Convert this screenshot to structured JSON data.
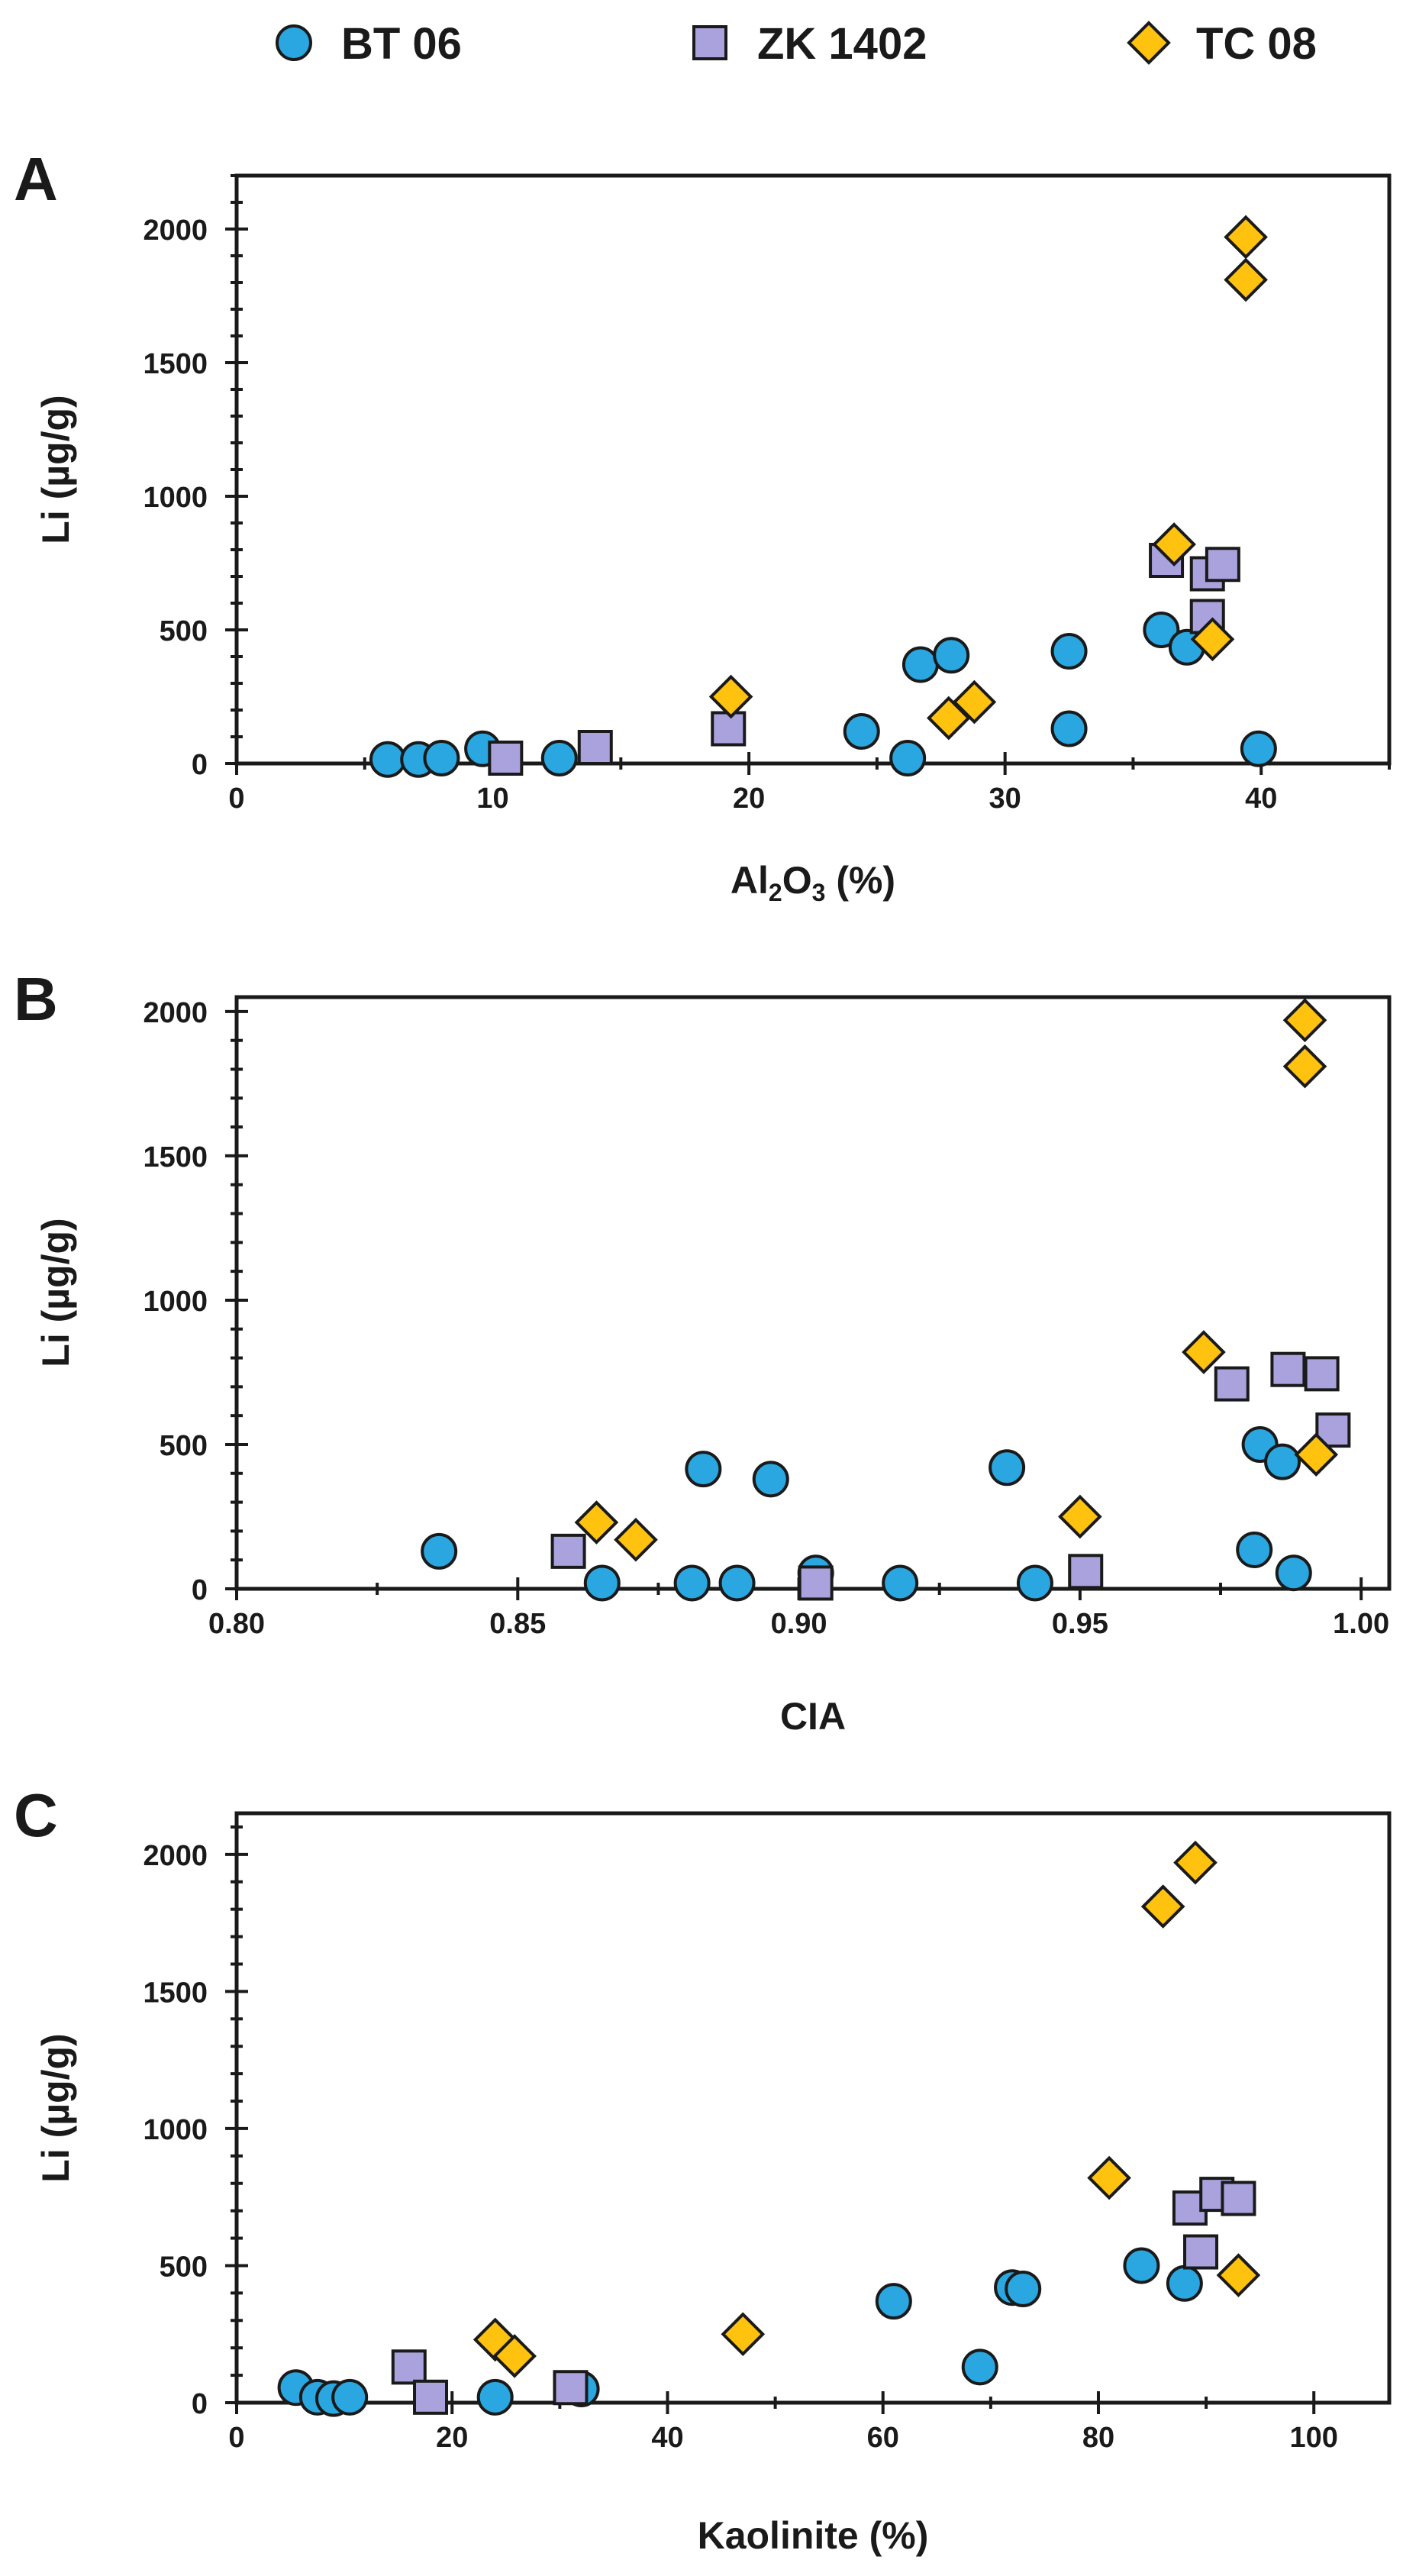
{
  "colors": {
    "BT 06": "#2aa7e0",
    "ZK 1402": "#a9a2dc",
    "TC 08": "#ffc20e",
    "stroke": "#1a1a1a"
  },
  "legend": [
    {
      "name": "BT 06",
      "marker": "circle-icon"
    },
    {
      "name": "ZK 1402",
      "marker": "square-icon"
    },
    {
      "name": "TC 08",
      "marker": "diamond-icon"
    }
  ],
  "chart_data": [
    {
      "type": "scatter",
      "panel": "A",
      "title": "",
      "xlabel": "Al2O3 (%)",
      "xlabel_main": "Al",
      "xlabel_sub1": "2",
      "xlabel_mid": "O",
      "xlabel_sub2": "3",
      "xlabel_tail": " (%)",
      "ylabel": "Li (µg/g)",
      "xlim": [
        0,
        45
      ],
      "ylim": [
        0,
        2200
      ],
      "xticks": [
        "0",
        "10",
        "20",
        "30",
        "40"
      ],
      "yticks": [
        "0",
        "500",
        "1000",
        "1500",
        "2000"
      ],
      "series": [
        {
          "name": "BT 06",
          "marker": "circle",
          "points": [
            [
              5.9,
              15
            ],
            [
              7.1,
              15
            ],
            [
              8.0,
              20
            ],
            [
              9.6,
              55
            ],
            [
              12.6,
              20
            ],
            [
              24.4,
              120
            ],
            [
              26.2,
              20
            ],
            [
              26.7,
              370
            ],
            [
              27.9,
              405
            ],
            [
              32.5,
              420
            ],
            [
              32.5,
              130
            ],
            [
              36.1,
              500
            ],
            [
              37.1,
              435
            ],
            [
              39.9,
              55
            ]
          ]
        },
        {
          "name": "ZK 1402",
          "marker": "square",
          "points": [
            [
              10.5,
              20
            ],
            [
              14.0,
              60
            ],
            [
              19.2,
              130
            ],
            [
              36.3,
              760
            ],
            [
              37.9,
              710
            ],
            [
              37.9,
              550
            ],
            [
              38.5,
              745
            ]
          ]
        },
        {
          "name": "TC 08",
          "marker": "diamond",
          "points": [
            [
              19.3,
              250
            ],
            [
              27.8,
              170
            ],
            [
              28.8,
              230
            ],
            [
              36.6,
              820
            ],
            [
              38.1,
              465
            ],
            [
              39.4,
              1970
            ],
            [
              39.4,
              1810
            ]
          ]
        }
      ]
    },
    {
      "type": "scatter",
      "panel": "B",
      "title": "",
      "xlabel": "CIA",
      "ylabel": "Li (µg/g)",
      "xlim": [
        0.8,
        1.005
      ],
      "ylim": [
        0,
        2050
      ],
      "xticks": [
        "0.80",
        "0.85",
        "0.90",
        "0.95",
        "1.00"
      ],
      "yticks": [
        "0",
        "500",
        "1000",
        "1500",
        "2000"
      ],
      "series": [
        {
          "name": "BT 06",
          "marker": "circle",
          "points": [
            [
              0.836,
              130
            ],
            [
              0.865,
              20
            ],
            [
              0.881,
              20
            ],
            [
              0.883,
              415
            ],
            [
              0.889,
              20
            ],
            [
              0.895,
              380
            ],
            [
              0.903,
              55
            ],
            [
              0.918,
              20
            ],
            [
              0.937,
              420
            ],
            [
              0.942,
              20
            ],
            [
              0.981,
              135
            ],
            [
              0.982,
              500
            ],
            [
              0.986,
              440
            ],
            [
              0.988,
              55
            ]
          ]
        },
        {
          "name": "ZK 1402",
          "marker": "square",
          "points": [
            [
              0.859,
              130
            ],
            [
              0.903,
              20
            ],
            [
              0.951,
              60
            ],
            [
              0.977,
              710
            ],
            [
              0.987,
              760
            ],
            [
              0.993,
              745
            ],
            [
              0.995,
              550
            ]
          ]
        },
        {
          "name": "TC 08",
          "marker": "diamond",
          "points": [
            [
              0.864,
              230
            ],
            [
              0.871,
              170
            ],
            [
              0.95,
              250
            ],
            [
              0.972,
              820
            ],
            [
              0.992,
              465
            ],
            [
              0.99,
              1970
            ],
            [
              0.99,
              1810
            ]
          ]
        }
      ]
    },
    {
      "type": "scatter",
      "panel": "C",
      "title": "",
      "xlabel": "Kaolinite (%)",
      "ylabel": "Li (µg/g)",
      "xlim": [
        0,
        107
      ],
      "ylim": [
        0,
        2150
      ],
      "xticks": [
        "0",
        "20",
        "40",
        "60",
        "80",
        "100"
      ],
      "yticks": [
        "0",
        "500",
        "1000",
        "1500",
        "2000"
      ],
      "series": [
        {
          "name": "BT 06",
          "marker": "circle",
          "points": [
            [
              5.5,
              55
            ],
            [
              7.5,
              20
            ],
            [
              9.0,
              15
            ],
            [
              10.5,
              20
            ],
            [
              24.0,
              20
            ],
            [
              32.0,
              50
            ],
            [
              61.0,
              370
            ],
            [
              69.0,
              130
            ],
            [
              72.0,
              420
            ],
            [
              73.0,
              415
            ],
            [
              84.0,
              500
            ],
            [
              88.0,
              435
            ]
          ]
        },
        {
          "name": "ZK 1402",
          "marker": "square",
          "points": [
            [
              16.0,
              130
            ],
            [
              18.0,
              20
            ],
            [
              31.0,
              55
            ],
            [
              88.5,
              710
            ],
            [
              89.5,
              550
            ],
            [
              91.0,
              760
            ],
            [
              93.0,
              745
            ]
          ]
        },
        {
          "name": "TC 08",
          "marker": "diamond",
          "points": [
            [
              24.0,
              230
            ],
            [
              25.8,
              170
            ],
            [
              47.0,
              250
            ],
            [
              81.0,
              820
            ],
            [
              86.0,
              1810
            ],
            [
              89.0,
              1970
            ],
            [
              93.0,
              465
            ]
          ]
        }
      ]
    }
  ]
}
